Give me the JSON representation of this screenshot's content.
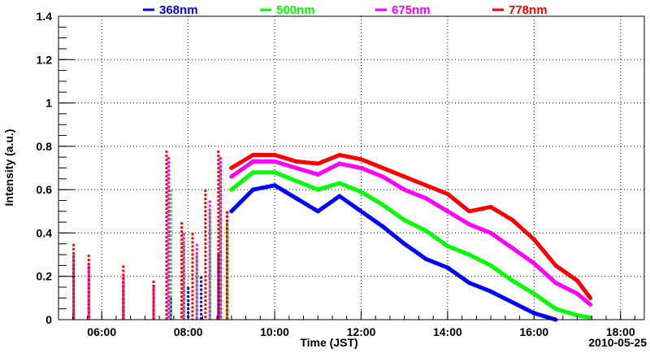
{
  "chart_data": {
    "type": "scatter",
    "title": "",
    "xlabel": "Time (JST)",
    "ylabel": "Intensity (a.u.)",
    "date_label": "2010-05-25",
    "xlim": [
      5.0,
      18.55
    ],
    "ylim": [
      0,
      1.4
    ],
    "grid": true,
    "legend_position": "top",
    "x_ticks": [
      {
        "v": 6,
        "label": "06:00"
      },
      {
        "v": 8,
        "label": "08:00"
      },
      {
        "v": 10,
        "label": "10:00"
      },
      {
        "v": 12,
        "label": "12:00"
      },
      {
        "v": 14,
        "label": "14:00"
      },
      {
        "v": 16,
        "label": "16:00"
      },
      {
        "v": 18,
        "label": "18:00"
      }
    ],
    "y_ticks": [
      {
        "v": 0,
        "label": "0"
      },
      {
        "v": 0.2,
        "label": "0.2"
      },
      {
        "v": 0.4,
        "label": "0.4"
      },
      {
        "v": 0.6,
        "label": "0.6"
      },
      {
        "v": 0.8,
        "label": "0.8"
      },
      {
        "v": 1.0,
        "label": "1"
      },
      {
        "v": 1.2,
        "label": "1.2"
      },
      {
        "v": 1.4,
        "label": "1.4"
      }
    ],
    "series": [
      {
        "name": "368nm",
        "color": "#0000ff",
        "morning": [
          [
            5.35,
            0.05
          ],
          [
            5.7,
            0.02
          ],
          [
            6.5,
            0.05
          ],
          [
            7.2,
            0.03
          ],
          [
            7.6,
            0.1
          ],
          [
            8.0,
            0.15
          ],
          [
            8.3,
            0.2
          ],
          [
            8.7,
            0.3
          ],
          [
            8.9,
            0.35
          ]
        ],
        "curve": [
          [
            9.0,
            0.5
          ],
          [
            9.5,
            0.6
          ],
          [
            10.0,
            0.62
          ],
          [
            10.5,
            0.56
          ],
          [
            11.0,
            0.5
          ],
          [
            11.5,
            0.57
          ],
          [
            12.0,
            0.5
          ],
          [
            12.5,
            0.43
          ],
          [
            13.0,
            0.35
          ],
          [
            13.5,
            0.28
          ],
          [
            14.0,
            0.24
          ],
          [
            14.5,
            0.17
          ],
          [
            15.0,
            0.13
          ],
          [
            15.5,
            0.08
          ],
          [
            16.0,
            0.03
          ],
          [
            16.5,
            0.0
          ]
        ]
      },
      {
        "name": "500nm",
        "color": "#00ff00",
        "morning": [
          [
            5.35,
            0.25
          ],
          [
            5.7,
            0.1
          ],
          [
            6.5,
            0.15
          ],
          [
            7.2,
            0.1
          ],
          [
            7.6,
            0.6
          ],
          [
            7.9,
            0.35
          ],
          [
            8.2,
            0.3
          ],
          [
            8.5,
            0.5
          ],
          [
            8.75,
            0.7
          ],
          [
            8.9,
            0.45
          ]
        ],
        "curve": [
          [
            9.0,
            0.6
          ],
          [
            9.5,
            0.68
          ],
          [
            10.0,
            0.68
          ],
          [
            10.5,
            0.64
          ],
          [
            11.0,
            0.6
          ],
          [
            11.5,
            0.63
          ],
          [
            12.0,
            0.59
          ],
          [
            12.5,
            0.53
          ],
          [
            13.0,
            0.46
          ],
          [
            13.5,
            0.41
          ],
          [
            14.0,
            0.34
          ],
          [
            14.5,
            0.3
          ],
          [
            15.0,
            0.25
          ],
          [
            15.5,
            0.18
          ],
          [
            16.0,
            0.12
          ],
          [
            16.5,
            0.05
          ],
          [
            17.0,
            0.02
          ],
          [
            17.3,
            0.01
          ]
        ]
      },
      {
        "name": "675nm",
        "color": "#ff00ff",
        "morning": [
          [
            5.35,
            0.3
          ],
          [
            5.7,
            0.25
          ],
          [
            6.5,
            0.2
          ],
          [
            7.2,
            0.15
          ],
          [
            7.55,
            0.75
          ],
          [
            7.9,
            0.4
          ],
          [
            8.2,
            0.35
          ],
          [
            8.5,
            0.55
          ],
          [
            8.75,
            0.75
          ],
          [
            8.9,
            0.5
          ]
        ],
        "curve": [
          [
            9.0,
            0.66
          ],
          [
            9.5,
            0.73
          ],
          [
            10.0,
            0.73
          ],
          [
            10.5,
            0.7
          ],
          [
            11.0,
            0.67
          ],
          [
            11.5,
            0.72
          ],
          [
            12.0,
            0.7
          ],
          [
            12.5,
            0.66
          ],
          [
            13.0,
            0.6
          ],
          [
            13.5,
            0.56
          ],
          [
            14.0,
            0.5
          ],
          [
            14.5,
            0.44
          ],
          [
            15.0,
            0.4
          ],
          [
            15.5,
            0.33
          ],
          [
            16.0,
            0.26
          ],
          [
            16.5,
            0.17
          ],
          [
            17.0,
            0.12
          ],
          [
            17.3,
            0.07
          ]
        ]
      },
      {
        "name": "778nm",
        "color": "#ff0000",
        "morning": [
          [
            5.35,
            0.35
          ],
          [
            5.7,
            0.3
          ],
          [
            6.5,
            0.25
          ],
          [
            7.2,
            0.18
          ],
          [
            7.5,
            0.78
          ],
          [
            7.85,
            0.45
          ],
          [
            8.1,
            0.4
          ],
          [
            8.4,
            0.6
          ],
          [
            8.7,
            0.78
          ],
          [
            8.9,
            0.5
          ]
        ],
        "curve": [
          [
            9.0,
            0.7
          ],
          [
            9.5,
            0.76
          ],
          [
            10.0,
            0.76
          ],
          [
            10.5,
            0.73
          ],
          [
            11.0,
            0.72
          ],
          [
            11.5,
            0.76
          ],
          [
            12.0,
            0.74
          ],
          [
            12.5,
            0.7
          ],
          [
            13.0,
            0.66
          ],
          [
            13.5,
            0.62
          ],
          [
            14.0,
            0.58
          ],
          [
            14.5,
            0.5
          ],
          [
            15.0,
            0.52
          ],
          [
            15.5,
            0.46
          ],
          [
            16.0,
            0.37
          ],
          [
            16.5,
            0.25
          ],
          [
            17.0,
            0.18
          ],
          [
            17.3,
            0.1
          ]
        ]
      }
    ]
  }
}
